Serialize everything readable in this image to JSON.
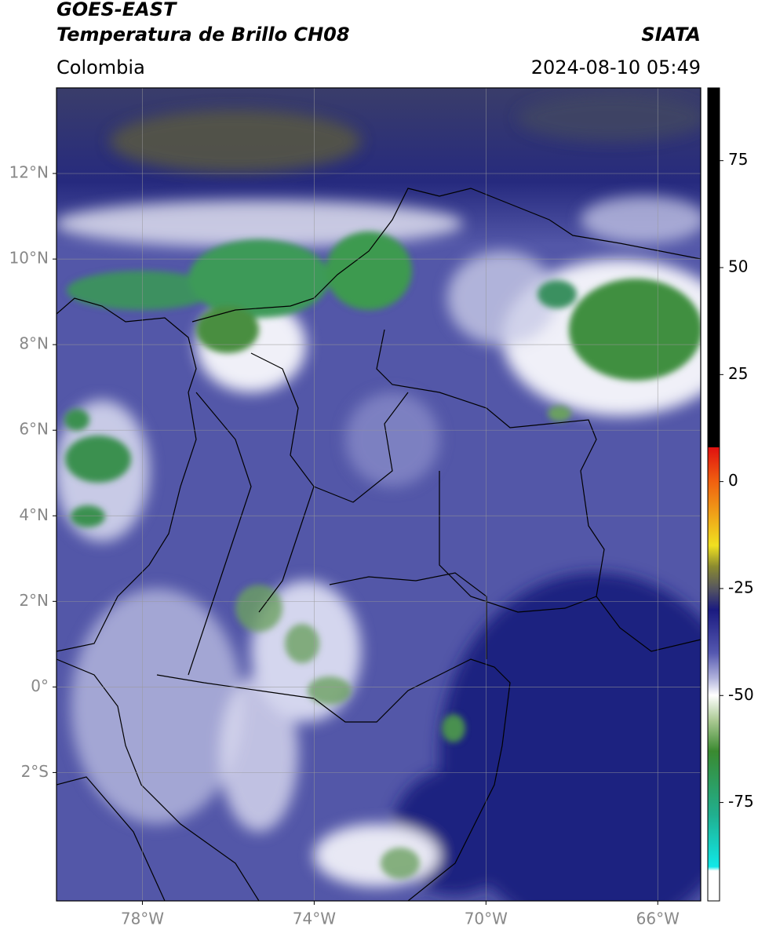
{
  "header": {
    "title": "GOES-EAST",
    "subtitle": "Temperatura de Brillo CH08",
    "region": "Colombia",
    "source": "SIATA",
    "timestamp": "2024-08-10 05:49"
  },
  "map": {
    "xlim": [
      -80,
      -65
    ],
    "ylim": [
      -5,
      14
    ],
    "xticks": [
      {
        "value": -78,
        "label": "78°W"
      },
      {
        "value": -74,
        "label": "74°W"
      },
      {
        "value": -70,
        "label": "70°W"
      },
      {
        "value": -66,
        "label": "66°W"
      }
    ],
    "yticks": [
      {
        "value": 12,
        "label": "12°N"
      },
      {
        "value": 10,
        "label": "10°N"
      },
      {
        "value": 8,
        "label": "8°N"
      },
      {
        "value": 6,
        "label": "6°N"
      },
      {
        "value": 4,
        "label": "4°N"
      },
      {
        "value": 2,
        "label": "2°N"
      },
      {
        "value": 0,
        "label": "0°"
      },
      {
        "value": -2,
        "label": "2°S"
      }
    ],
    "grid": true
  },
  "colorbar": {
    "lim": [
      -98,
      92
    ],
    "ticks": [
      75,
      50,
      25,
      0,
      -25,
      -50,
      -75
    ]
  }
}
